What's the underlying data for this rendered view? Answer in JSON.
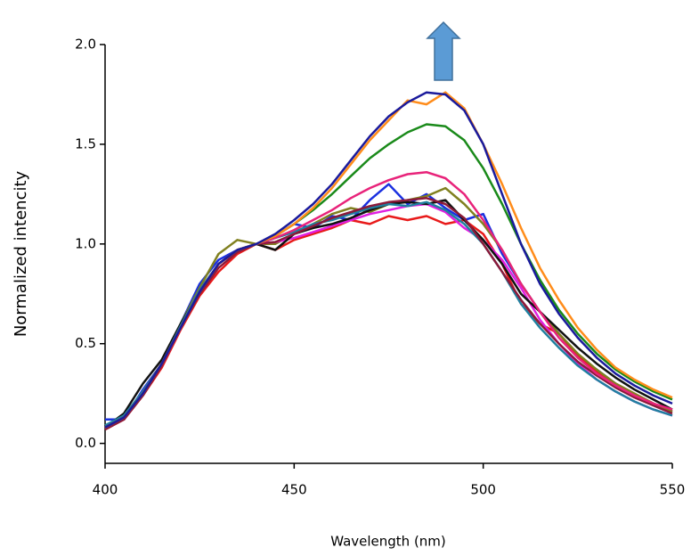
{
  "chart_data": {
    "type": "line",
    "x_label": "Wavelength (nm)",
    "y_label": "Normalized intencity",
    "xlim": [
      400,
      550
    ],
    "ylim": [
      -0.1,
      2.0
    ],
    "xticks": [
      400,
      450,
      500,
      550
    ],
    "yticks": [
      {
        "value": 0,
        "label": "0.0"
      },
      0.5,
      {
        "value": 1,
        "label": "1.0"
      },
      1.5,
      {
        "value": 2,
        "label": "2.0"
      }
    ],
    "x": [
      400,
      405,
      410,
      415,
      420,
      425,
      430,
      435,
      440,
      445,
      450,
      455,
      460,
      465,
      470,
      475,
      480,
      485,
      490,
      495,
      500,
      505,
      510,
      515,
      520,
      525,
      530,
      535,
      540,
      545,
      550
    ],
    "series": [
      {
        "color": "#1a30e0",
        "values": [
          0.12,
          0.12,
          0.27,
          0.4,
          0.6,
          0.8,
          0.92,
          0.97,
          1.0,
          1.04,
          1.1,
          1.08,
          1.14,
          1.12,
          1.22,
          1.3,
          1.2,
          1.25,
          1.18,
          1.12,
          1.15,
          0.95,
          0.8,
          0.66,
          0.55,
          0.44,
          0.37,
          0.3,
          0.24,
          0.2,
          0.16
        ]
      },
      {
        "color": "#e81a1a",
        "values": [
          0.07,
          0.12,
          0.24,
          0.38,
          0.57,
          0.74,
          0.86,
          0.95,
          1.0,
          0.97,
          1.02,
          1.05,
          1.08,
          1.12,
          1.1,
          1.14,
          1.12,
          1.14,
          1.1,
          1.12,
          1.05,
          0.9,
          0.7,
          0.6,
          0.55,
          0.44,
          0.36,
          0.3,
          0.25,
          0.2,
          0.16
        ]
      },
      {
        "color": "#808020",
        "values": [
          0.08,
          0.13,
          0.26,
          0.4,
          0.6,
          0.78,
          0.95,
          1.02,
          1.0,
          1.0,
          1.05,
          1.1,
          1.15,
          1.18,
          1.16,
          1.2,
          1.22,
          1.24,
          1.28,
          1.2,
          1.1,
          0.97,
          0.8,
          0.66,
          0.55,
          0.45,
          0.37,
          0.3,
          0.25,
          0.2,
          0.16
        ]
      },
      {
        "color": "#e020e0",
        "values": [
          0.08,
          0.13,
          0.25,
          0.39,
          0.58,
          0.76,
          0.9,
          0.97,
          1.0,
          1.01,
          1.03,
          1.06,
          1.09,
          1.12,
          1.15,
          1.17,
          1.19,
          1.2,
          1.16,
          1.08,
          1.02,
          0.92,
          0.78,
          0.62,
          0.5,
          0.4,
          0.32,
          0.26,
          0.21,
          0.17,
          0.14
        ]
      },
      {
        "color": "#111111",
        "values": [
          0.08,
          0.15,
          0.3,
          0.42,
          0.6,
          0.76,
          0.9,
          0.97,
          1.0,
          0.97,
          1.05,
          1.08,
          1.1,
          1.13,
          1.17,
          1.2,
          1.21,
          1.2,
          1.22,
          1.12,
          1.02,
          0.9,
          0.75,
          0.66,
          0.57,
          0.48,
          0.4,
          0.33,
          0.27,
          0.22,
          0.17
        ]
      },
      {
        "color": "#2080a0",
        "values": [
          0.09,
          0.14,
          0.26,
          0.4,
          0.59,
          0.77,
          0.9,
          0.97,
          1.0,
          1.03,
          1.06,
          1.1,
          1.12,
          1.15,
          1.18,
          1.2,
          1.19,
          1.21,
          1.17,
          1.1,
          1.0,
          0.86,
          0.7,
          0.58,
          0.48,
          0.39,
          0.32,
          0.26,
          0.21,
          0.17,
          0.14
        ]
      },
      {
        "color": "#8b1a3a",
        "values": [
          0.07,
          0.12,
          0.24,
          0.39,
          0.58,
          0.75,
          0.88,
          0.96,
          1.0,
          1.01,
          1.05,
          1.09,
          1.13,
          1.16,
          1.19,
          1.21,
          1.22,
          1.23,
          1.2,
          1.13,
          1.0,
          0.86,
          0.72,
          0.6,
          0.5,
          0.41,
          0.34,
          0.28,
          0.23,
          0.19,
          0.15
        ]
      },
      {
        "color": "#e8237a",
        "values": [
          0.08,
          0.13,
          0.25,
          0.4,
          0.58,
          0.76,
          0.9,
          0.97,
          1.0,
          1.03,
          1.07,
          1.12,
          1.17,
          1.23,
          1.28,
          1.32,
          1.35,
          1.36,
          1.33,
          1.25,
          1.12,
          0.97,
          0.8,
          0.66,
          0.53,
          0.43,
          0.35,
          0.29,
          0.24,
          0.2,
          0.17
        ]
      },
      {
        "color": "#1a8a1a",
        "values": [
          0.08,
          0.13,
          0.25,
          0.4,
          0.58,
          0.76,
          0.9,
          0.97,
          1.0,
          1.04,
          1.1,
          1.17,
          1.25,
          1.34,
          1.43,
          1.5,
          1.56,
          1.6,
          1.59,
          1.52,
          1.38,
          1.2,
          1.0,
          0.82,
          0.67,
          0.55,
          0.45,
          0.37,
          0.31,
          0.26,
          0.22
        ]
      },
      {
        "color": "#ff8c1a",
        "values": [
          0.08,
          0.13,
          0.25,
          0.4,
          0.58,
          0.76,
          0.9,
          0.97,
          1.0,
          1.04,
          1.1,
          1.18,
          1.28,
          1.4,
          1.52,
          1.62,
          1.72,
          1.7,
          1.76,
          1.68,
          1.5,
          1.3,
          1.08,
          0.88,
          0.72,
          0.58,
          0.47,
          0.38,
          0.32,
          0.27,
          0.23
        ]
      },
      {
        "color": "#1a1a9c",
        "values": [
          0.08,
          0.13,
          0.25,
          0.4,
          0.58,
          0.76,
          0.9,
          0.97,
          1.0,
          1.05,
          1.12,
          1.2,
          1.3,
          1.42,
          1.54,
          1.64,
          1.71,
          1.76,
          1.75,
          1.67,
          1.5,
          1.25,
          1.0,
          0.8,
          0.65,
          0.53,
          0.43,
          0.35,
          0.29,
          0.24,
          0.2
        ]
      }
    ]
  }
}
